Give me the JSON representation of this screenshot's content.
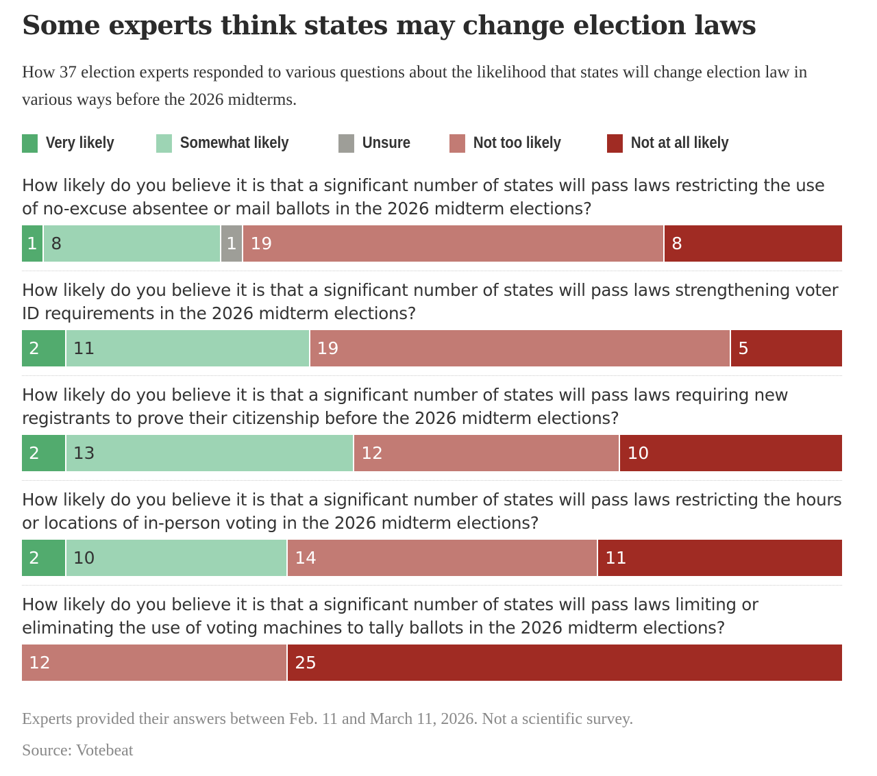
{
  "chart_data": {
    "type": "bar",
    "orientation": "horizontal-stacked",
    "title": "Some experts think states may change election laws",
    "subtitle": "How 37 election experts responded to various questions about the likelihood that states will change election law in various ways before the 2026 midterms.",
    "legend_placement": "top",
    "series": [
      {
        "name": "Very likely",
        "color": "#52ab6e",
        "values": [
          1,
          2,
          2,
          2,
          0
        ]
      },
      {
        "name": "Somewhat likely",
        "color": "#9dd4b4",
        "values": [
          8,
          11,
          13,
          10,
          0
        ]
      },
      {
        "name": "Unsure",
        "color": "#9e9e98",
        "values": [
          1,
          0,
          0,
          0,
          0
        ]
      },
      {
        "name": "Not too likely",
        "color": "#c27b74",
        "values": [
          19,
          19,
          12,
          14,
          12
        ]
      },
      {
        "name": "Not at all likely",
        "color": "#a02b23",
        "values": [
          8,
          5,
          10,
          11,
          25
        ]
      }
    ],
    "categories": [
      "How likely do you believe it is that a significant number of states will pass laws restricting the use of no-excuse absentee or mail ballots in the 2026 midterm elections?",
      "How likely do you believe it is that a significant number of states will pass laws strengthening voter ID requirements in the 2026 midterm elections?",
      "How likely do you believe it is that a significant number of states will pass laws requiring new registrants to prove their citizenship before the 2026 midterm elections?",
      "How likely do you believe it is that a significant number of states will pass laws restricting the hours or locations of in-person voting in the 2026 midterm elections?",
      "How likely do you believe it is that a significant number of states will pass laws limiting or eliminating the use of voting machines to tally ballots in the 2026 midterm elections?"
    ],
    "total": 37
  },
  "footer": {
    "note": "Experts provided their answers between Feb. 11 and March 11, 2026. Not a scientific survey.",
    "source": "Source: Votebeat"
  }
}
